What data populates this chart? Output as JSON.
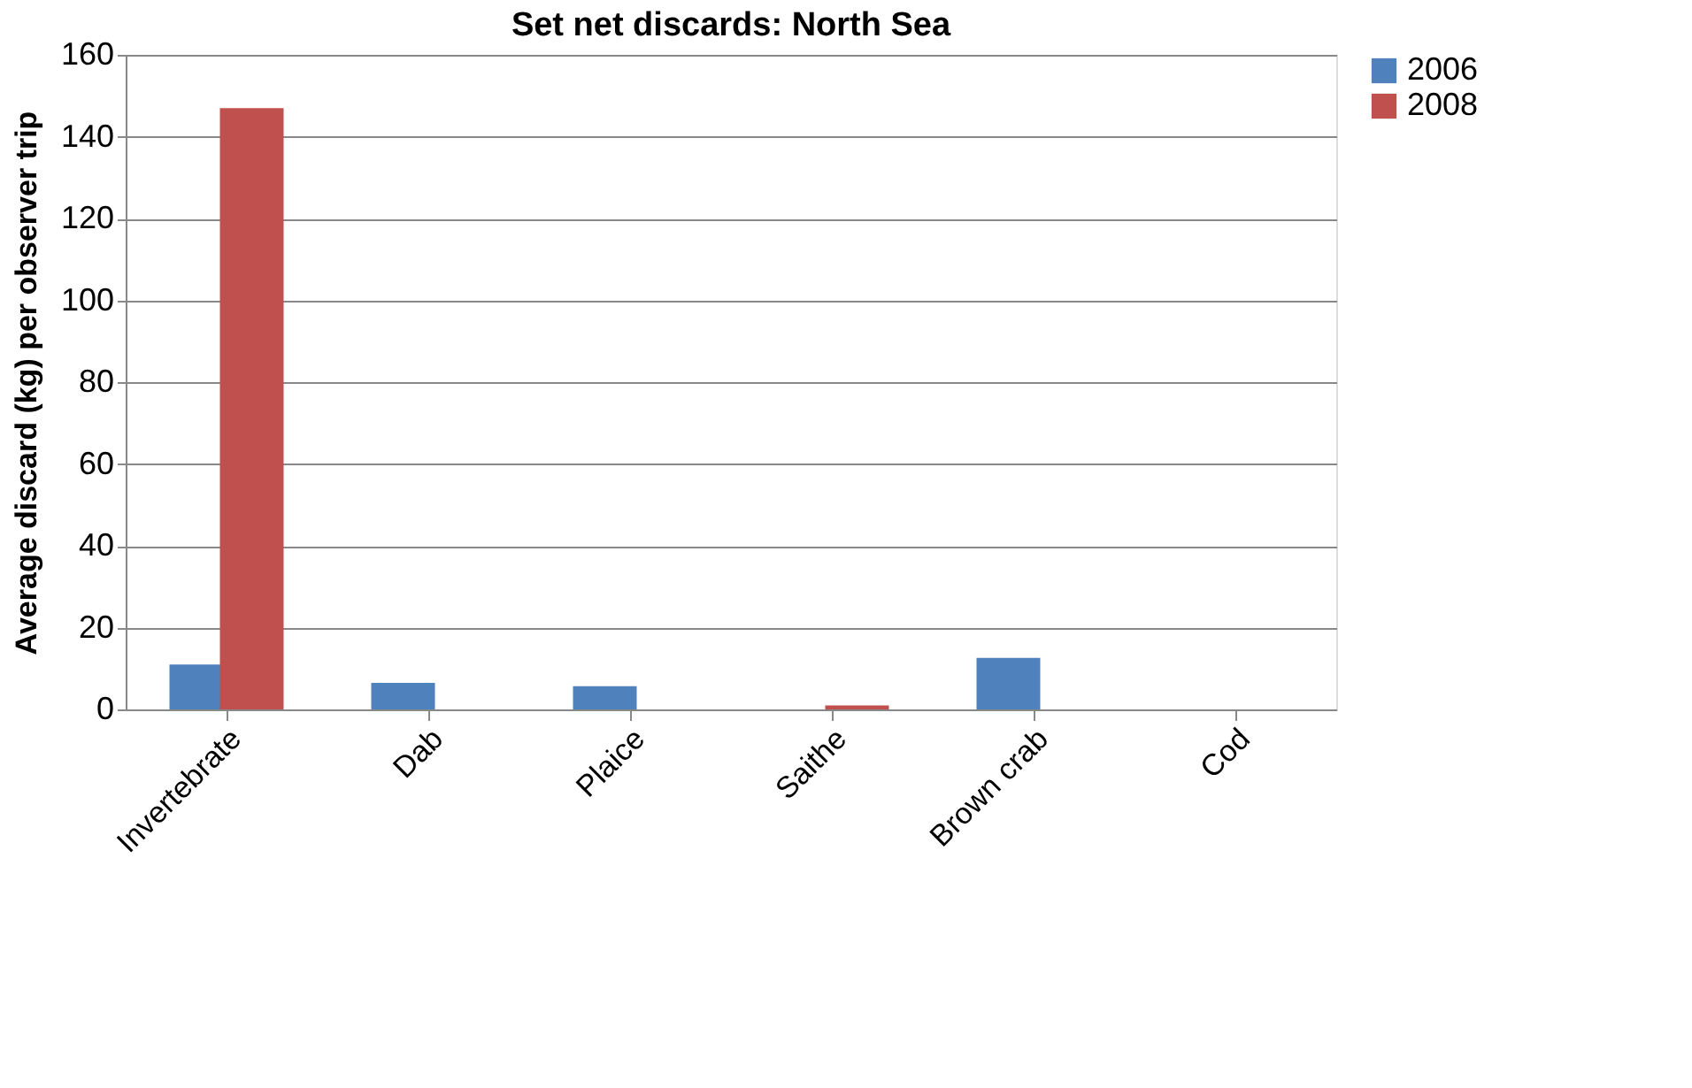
{
  "chart_data": {
    "type": "bar",
    "title": "Set net discards: North Sea",
    "ylabel": "Average discard (kg) per observer trip",
    "categories": [
      "Invertebrate",
      "Dab",
      "Plaice",
      "Saithe",
      "Brown crab",
      "Cod"
    ],
    "series": [
      {
        "name": "2006",
        "color": "#4f81bd",
        "values": [
          11,
          6.5,
          5.7,
          0,
          12.6,
          0
        ]
      },
      {
        "name": "2008",
        "color": "#c0504d",
        "values": [
          147,
          0,
          0,
          1,
          0,
          0
        ]
      }
    ],
    "ylim": [
      0,
      160
    ],
    "yticks": [
      0,
      20,
      40,
      60,
      80,
      100,
      120,
      140,
      160
    ],
    "grid": "y",
    "legend": "right"
  }
}
